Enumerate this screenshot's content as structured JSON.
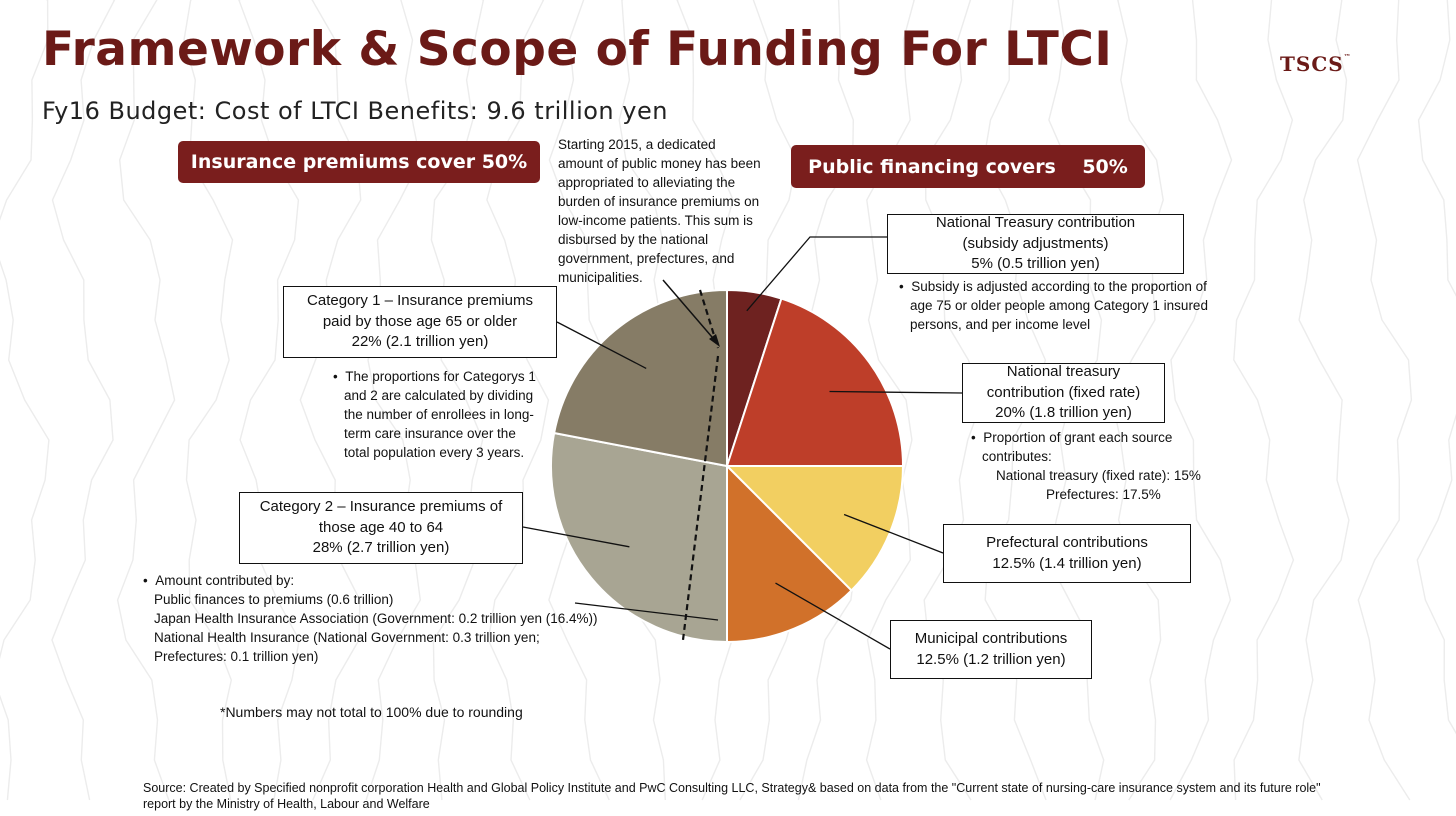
{
  "header": {
    "title": "Framework & Scope of Funding For LTCI",
    "brand": "TSCS",
    "brand_mark": "™",
    "subtitle": "Fy16 Budget: Cost of LTCI Benefits: 9.6 trillion yen"
  },
  "banners": {
    "left": "Insurance premiums cover 50%",
    "right": "Public financing covers    50%"
  },
  "notes": {
    "public_money": [
      "Starting 2015, a dedicated",
      "amount of public money has been",
      "appropriated to alleviating the",
      "burden of insurance premiums on",
      "low-income patients. This sum is",
      "disbursed by the national",
      "government, prefectures, and",
      "municipalities."
    ],
    "subsidy": [
      "Subsidy is adjusted according to the proportion of",
      "age 75 or older people among Category 1 insured",
      "persons, and per income level"
    ],
    "proportions": [
      "The proportions for Categorys 1",
      "and 2 are calculated by dividing",
      "the number of enrollees in long-",
      "term care insurance over the",
      "total population every 3 years."
    ],
    "grant": [
      "Proportion of grant each source",
      "contributes:",
      "National treasury (fixed rate): 15%",
      "Prefectures: 17.5%"
    ],
    "amount": [
      "Amount contributed by:",
      "Public finances to premiums (0.6 trillion)",
      "Japan Health Insurance Association (Government: 0.2 trillion yen (16.4%))",
      "National Health Insurance (National Government: 0.3 trillion yen;",
      "Prefectures: 0.1 trillion yen)"
    ]
  },
  "footnote": "*Numbers may not total to 100% due to rounding",
  "source": "Source: Created by Specified nonprofit corporation Health and Global Policy Institute and PwC Consulting LLC, Strategy& based on data from the \"Current state of nursing-care insurance system and its future role\" report by the Ministry of Health, Labour and Welfare",
  "chart_data": {
    "type": "pie",
    "title": "Fy16 Budget: Cost of LTCI Benefits: 9.6 trillion yen",
    "total": "9.6 trillion yen",
    "slices": [
      {
        "key": "national_adj",
        "label": [
          "National Treasury contribution",
          "(subsidy adjustments)",
          "5% (0.5 trillion yen)"
        ],
        "value": 5,
        "color": "#6e2220"
      },
      {
        "key": "national_fixed",
        "label": [
          "National treasury",
          "contribution (fixed rate)",
          "20% (1.8 trillion yen)"
        ],
        "value": 20,
        "color": "#be3e29"
      },
      {
        "key": "prefectural",
        "label": [
          "Prefectural contributions",
          "12.5% (1.4 trillion yen)"
        ],
        "value": 12.5,
        "color": "#f2cf61"
      },
      {
        "key": "municipal",
        "label": [
          "Municipal contributions",
          "12.5% (1.2 trillion yen)"
        ],
        "value": 12.5,
        "color": "#d1712a"
      },
      {
        "key": "category2",
        "label": [
          "Category 2 – Insurance premiums of",
          "those age 40 to 64",
          "28% (2.7 trillion yen)"
        ],
        "value": 28,
        "color": "#a8a593"
      },
      {
        "key": "category1",
        "label": [
          "Category 1 – Insurance premiums",
          "paid by those age 65 or older",
          "22% (2.1 trillion yen)"
        ],
        "value": 22,
        "color": "#867c66"
      }
    ]
  }
}
